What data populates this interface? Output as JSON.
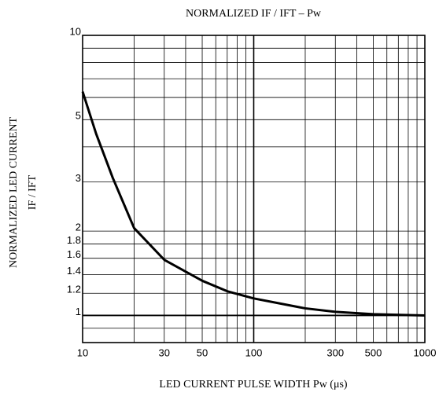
{
  "chart_data": {
    "type": "line",
    "title": "NORMALIZED IF / IFT – Pw",
    "ylabel": [
      "NORMALIZED LED CURRENT",
      "IF / IFT"
    ],
    "xlabel": "LED CURRENT PULSE WIDTH   Pw   (μs)",
    "xscale": "log",
    "yscale": "log",
    "grid": true,
    "xlim": [
      10,
      1000
    ],
    "ylim": [
      0.8,
      10
    ],
    "xticks": [
      10,
      30,
      50,
      100,
      300,
      500,
      1000
    ],
    "yticks": [
      1,
      1.2,
      1.4,
      1.6,
      1.8,
      2,
      3,
      5,
      10
    ],
    "xminor": [
      20,
      40,
      60,
      70,
      80,
      90,
      200,
      400,
      600,
      700,
      800,
      900
    ],
    "yminor": [
      0.9,
      4,
      6,
      7,
      8,
      9
    ],
    "series": [
      {
        "color": "#000000",
        "x": [
          10,
          12,
          15,
          20,
          30,
          50,
          70,
          100,
          200,
          300,
          500,
          1000
        ],
        "values": [
          6.3,
          4.45,
          3.1,
          2.05,
          1.58,
          1.33,
          1.22,
          1.15,
          1.06,
          1.03,
          1.01,
          1.0
        ]
      }
    ]
  }
}
